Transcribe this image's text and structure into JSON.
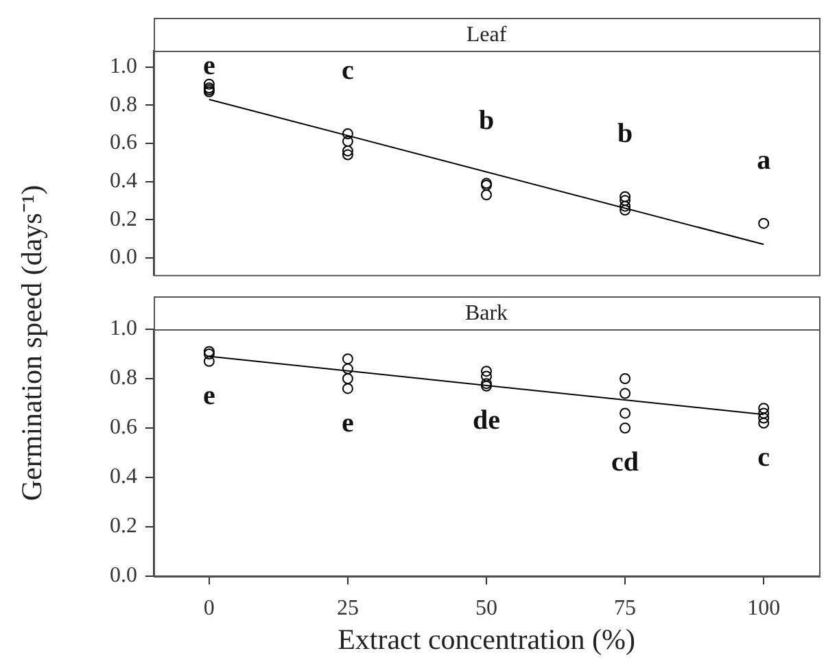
{
  "chart_data": [
    {
      "type": "scatter",
      "title": "Leaf",
      "ylabel": "Germination speed (days⁻¹)",
      "xlim": [
        -10,
        110
      ],
      "xticks": [
        0,
        25,
        50,
        75,
        100
      ],
      "ylim": [
        -0.09,
        1.085
      ],
      "yticks": [
        {
          "value": 0,
          "label": "0.0"
        },
        {
          "value": 0.2,
          "label": "0.2"
        },
        {
          "value": 0.4,
          "label": "0.4"
        },
        {
          "value": 0.6,
          "label": "0.6"
        },
        {
          "value": 0.8,
          "label": "0.8"
        },
        {
          "value": 1,
          "label": "1.0"
        }
      ],
      "tick_labels": "y",
      "grid": false,
      "legend": false,
      "series": [
        {
          "marker": "circle",
          "color": "#000000",
          "x": [
            0,
            0,
            0,
            0,
            25,
            25,
            25,
            25,
            50,
            50,
            50,
            75,
            75,
            75,
            75,
            100
          ],
          "values": [
            0.91,
            0.89,
            0.88,
            0.87,
            0.65,
            0.61,
            0.56,
            0.54,
            0.39,
            0.38,
            0.33,
            0.32,
            0.3,
            0.27,
            0.25,
            0.18
          ]
        },
        {
          "type": "line",
          "marker": "none",
          "color": "#000000",
          "x": [
            0,
            100
          ],
          "values": [
            0.83,
            0.07
          ]
        }
      ],
      "annotations": [
        "e",
        "c",
        "b",
        "b",
        "a"
      ]
    },
    {
      "type": "scatter",
      "title": "Bark",
      "xlabel": "Extract concentration (%)",
      "xlim": [
        -10,
        110
      ],
      "xticks": [
        0,
        25,
        50,
        75,
        100
      ],
      "ylim": [
        0,
        1
      ],
      "yticks": [
        {
          "value": 0,
          "label": "0.0"
        },
        {
          "value": 0.2,
          "label": "0.2"
        },
        {
          "value": 0.4,
          "label": "0.4"
        },
        {
          "value": 0.6,
          "label": "0.6"
        },
        {
          "value": 0.8,
          "label": "0.8"
        },
        {
          "value": 1,
          "label": "1.0"
        }
      ],
      "grid": false,
      "legend": false,
      "series": [
        {
          "marker": "circle",
          "color": "#000000",
          "x": [
            0,
            0,
            0,
            25,
            25,
            25,
            25,
            50,
            50,
            50,
            50,
            75,
            75,
            75,
            75,
            100,
            100,
            100,
            100
          ],
          "values": [
            0.91,
            0.9,
            0.87,
            0.88,
            0.84,
            0.8,
            0.76,
            0.83,
            0.81,
            0.78,
            0.77,
            0.8,
            0.74,
            0.66,
            0.6,
            0.68,
            0.66,
            0.64,
            0.62
          ]
        },
        {
          "type": "line",
          "marker": "none",
          "color": "#000000",
          "x": [
            0,
            100
          ],
          "values": [
            0.89,
            0.655
          ]
        }
      ],
      "annotations": [
        "e",
        "e",
        "de",
        "cd",
        "c"
      ]
    }
  ]
}
